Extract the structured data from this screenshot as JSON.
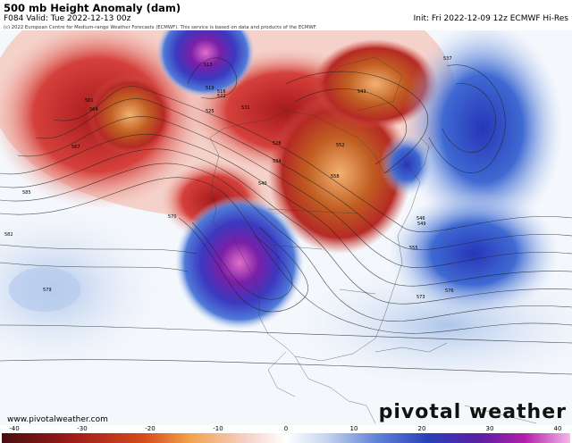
{
  "header": {
    "title": "500 mb Height Anomaly (dam)",
    "valid": "F084 Valid: Tue 2022-12-13 00z",
    "init": "Init: Fri 2022-12-09 12z ECMWF Hi-Res",
    "credit": "(c) 2022 European Centre for Medium-range Weather Forecasts (ECMWF). This service is based on data and products of the ECMWF."
  },
  "footer": {
    "website": "www.pivotalweather.com",
    "brand": "pivotal weather"
  },
  "colorbar": {
    "ticks": [
      "-40",
      "-30",
      "-20",
      "-10",
      "0",
      "10",
      "20",
      "30",
      "40"
    ],
    "colors": [
      "#5b1a1a",
      "#a01c1c",
      "#d64b1c",
      "#f0a24a",
      "#f7d9a8",
      "#ffffff",
      "#c7d6ef",
      "#5f82d6",
      "#2a3fb8",
      "#5a1fa4",
      "#b21fa8",
      "#e88de0"
    ]
  },
  "map": {
    "anomaly_colors": {
      "strong_negative": "#4a1ca0",
      "negative": "#2b4fc0",
      "weak_negative": "#a9c3ea",
      "neutral": "#ffffff",
      "weak_positive": "#f4b6a0",
      "positive": "#c8282a",
      "strong_positive": "#b85a1a"
    },
    "contour_labels": [
      {
        "id": "c1",
        "text": "561"
      },
      {
        "id": "c2",
        "text": "564"
      },
      {
        "id": "c3",
        "text": "567"
      },
      {
        "id": "c4",
        "text": "570"
      },
      {
        "id": "c5",
        "text": "573"
      },
      {
        "id": "c6",
        "text": "576"
      },
      {
        "id": "c7",
        "text": "579"
      },
      {
        "id": "c8",
        "text": "582"
      },
      {
        "id": "c9",
        "text": "585"
      },
      {
        "id": "c10",
        "text": "549"
      },
      {
        "id": "c11",
        "text": "546"
      },
      {
        "id": "c12",
        "text": "543"
      },
      {
        "id": "c13",
        "text": "540"
      },
      {
        "id": "c14",
        "text": "537"
      },
      {
        "id": "c15",
        "text": "534"
      },
      {
        "id": "c16",
        "text": "531"
      },
      {
        "id": "c17",
        "text": "528"
      },
      {
        "id": "c18",
        "text": "525"
      },
      {
        "id": "c19",
        "text": "522"
      },
      {
        "id": "c20",
        "text": "519"
      },
      {
        "id": "c21",
        "text": "516"
      },
      {
        "id": "c22",
        "text": "513"
      },
      {
        "id": "c23",
        "text": "558"
      },
      {
        "id": "c24",
        "text": "552"
      },
      {
        "id": "c25",
        "text": "555"
      }
    ]
  }
}
